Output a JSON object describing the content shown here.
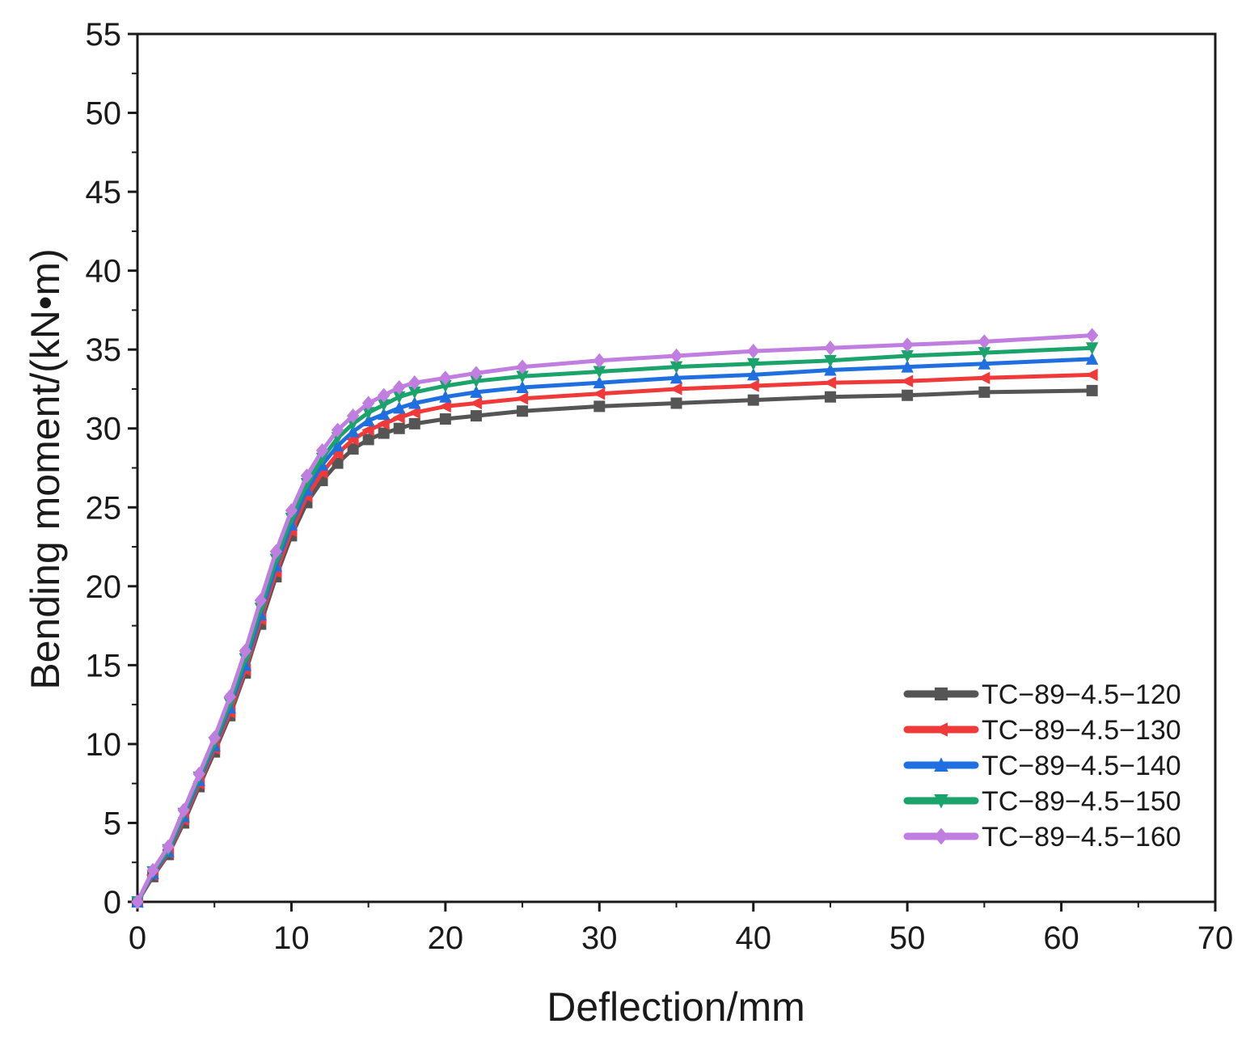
{
  "chart_data": {
    "type": "line",
    "title": "",
    "xlabel": "Deflection/mm",
    "ylabel": "Bending moment/(kN•m)",
    "xlim": [
      0,
      70
    ],
    "ylim": [
      0,
      55
    ],
    "xticks": [
      0,
      10,
      20,
      30,
      40,
      50,
      60,
      70
    ],
    "yticks": [
      0,
      5,
      10,
      15,
      20,
      25,
      30,
      35,
      40,
      45,
      50,
      55
    ],
    "grid": false,
    "legend_position": "bottom-right",
    "series": [
      {
        "name": "TC−89−4.5−120",
        "color": "#555555",
        "marker": "square",
        "x": [
          0,
          1,
          2,
          3,
          4,
          5,
          6,
          7,
          8,
          9,
          10,
          11,
          12,
          13,
          14,
          15,
          16,
          17,
          18,
          20,
          22,
          25,
          30,
          35,
          40,
          45,
          50,
          55,
          62
        ],
        "y": [
          0,
          1.6,
          3.0,
          5.0,
          7.3,
          9.5,
          11.8,
          14.5,
          17.6,
          20.6,
          23.2,
          25.3,
          26.7,
          27.8,
          28.7,
          29.3,
          29.7,
          30.0,
          30.3,
          30.6,
          30.8,
          31.1,
          31.4,
          31.6,
          31.8,
          32.0,
          32.1,
          32.3,
          32.4
        ]
      },
      {
        "name": "TC−89−4.5−130",
        "color": "#f03a3a",
        "marker": "left-triangle",
        "x": [
          0,
          1,
          2,
          3,
          4,
          5,
          6,
          7,
          8,
          9,
          10,
          11,
          12,
          13,
          14,
          15,
          16,
          17,
          18,
          20,
          22,
          25,
          30,
          35,
          40,
          45,
          50,
          55,
          62
        ],
        "y": [
          0,
          1.7,
          3.1,
          5.2,
          7.5,
          9.7,
          12.0,
          14.7,
          17.9,
          20.9,
          23.5,
          25.7,
          27.2,
          28.4,
          29.3,
          29.9,
          30.3,
          30.7,
          31.0,
          31.4,
          31.6,
          31.9,
          32.2,
          32.5,
          32.7,
          32.9,
          33.0,
          33.2,
          33.4
        ]
      },
      {
        "name": "TC−89−4.5−140",
        "color": "#1f6fe0",
        "marker": "triangle-up",
        "x": [
          0,
          1,
          2,
          3,
          4,
          5,
          6,
          7,
          8,
          9,
          10,
          11,
          12,
          13,
          14,
          15,
          16,
          17,
          18,
          20,
          22,
          25,
          30,
          35,
          40,
          45,
          50,
          55,
          62
        ],
        "y": [
          0,
          1.8,
          3.2,
          5.4,
          7.7,
          9.9,
          12.3,
          15.0,
          18.2,
          21.3,
          23.9,
          26.1,
          27.7,
          28.9,
          29.8,
          30.5,
          30.9,
          31.3,
          31.6,
          32.0,
          32.3,
          32.6,
          32.9,
          33.2,
          33.4,
          33.7,
          33.9,
          34.1,
          34.4
        ]
      },
      {
        "name": "TC−89−4.5−150",
        "color": "#1aa36a",
        "marker": "triangle-down",
        "x": [
          0,
          1,
          2,
          3,
          4,
          5,
          6,
          7,
          8,
          9,
          10,
          11,
          12,
          13,
          14,
          15,
          16,
          17,
          18,
          20,
          22,
          25,
          30,
          35,
          40,
          45,
          50,
          55,
          62
        ],
        "y": [
          0,
          1.9,
          3.3,
          5.6,
          7.9,
          10.1,
          12.6,
          15.4,
          18.6,
          21.7,
          24.3,
          26.5,
          28.1,
          29.4,
          30.3,
          31.0,
          31.5,
          32.0,
          32.3,
          32.7,
          33.0,
          33.3,
          33.6,
          33.9,
          34.1,
          34.3,
          34.6,
          34.8,
          35.1
        ]
      },
      {
        "name": "TC−89−4.5−160",
        "color": "#c07ee0",
        "marker": "diamond",
        "x": [
          0,
          1,
          2,
          3,
          4,
          5,
          6,
          7,
          8,
          9,
          10,
          11,
          12,
          13,
          14,
          15,
          16,
          17,
          18,
          20,
          22,
          25,
          30,
          35,
          40,
          45,
          50,
          55,
          62
        ],
        "y": [
          0,
          2.0,
          3.5,
          5.8,
          8.1,
          10.4,
          13.0,
          15.9,
          19.1,
          22.2,
          24.8,
          27.0,
          28.6,
          29.9,
          30.8,
          31.6,
          32.1,
          32.6,
          32.9,
          33.2,
          33.5,
          33.9,
          34.3,
          34.6,
          34.9,
          35.1,
          35.3,
          35.5,
          35.9
        ]
      }
    ]
  }
}
